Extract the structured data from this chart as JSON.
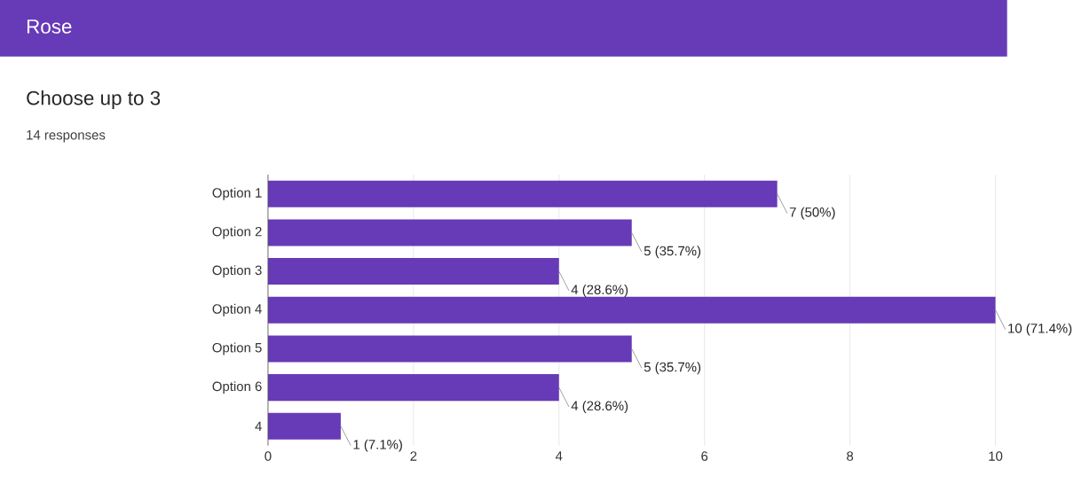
{
  "chart_data": {
    "type": "bar",
    "orientation": "horizontal",
    "title": "Rose",
    "subtitle": "Choose up to 3",
    "annotations": [
      "14 responses"
    ],
    "categories": [
      "Option 1",
      "Option 2",
      "Option 3",
      "Option 4",
      "Option 5",
      "Option 6",
      "4"
    ],
    "values": [
      7,
      5,
      4,
      10,
      5,
      4,
      1
    ],
    "value_labels": [
      "7 (50%)",
      "5 (35.7%)",
      "4 (28.6%)",
      "10 (71.4%)",
      "5 (35.7%)",
      "4 (28.6%)",
      "1 (7.1%)"
    ],
    "color": "#673ab7",
    "xlim": [
      0,
      10
    ],
    "xticks": [
      0,
      2,
      4,
      6,
      8,
      10
    ],
    "grid": "x"
  }
}
